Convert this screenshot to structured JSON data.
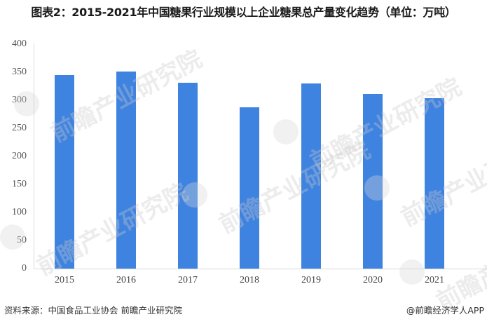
{
  "title": "图表2：2015-2021年中国糖果行业规模以上企业糖果总产量变化趋势（单位：万吨）",
  "footer": {
    "source": "资料来源：中国食品工业协会 前瞻产业研究院",
    "credit": "@前瞻经济学人APP"
  },
  "watermark": "前瞻产业研究院",
  "colors": {
    "bar": "#3f83e0",
    "axis": "#d9d9d9"
  },
  "y_ticks": [
    "400",
    "350",
    "300",
    "250",
    "200",
    "150",
    "100",
    "50",
    "0"
  ],
  "chart_data": {
    "type": "bar",
    "title": "图表2：2015-2021年中国糖果行业规模以上企业糖果总产量变化趋势（单位：万吨）",
    "xlabel": "",
    "ylabel": "万吨",
    "categories": [
      "2015",
      "2016",
      "2017",
      "2018",
      "2019",
      "2020",
      "2021"
    ],
    "values": [
      345,
      351,
      331,
      288,
      330,
      311,
      304
    ],
    "ylim": [
      0,
      400
    ],
    "yticks": [
      0,
      50,
      100,
      150,
      200,
      250,
      300,
      350,
      400
    ],
    "grid": false,
    "legend": null,
    "source": "资料来源：中国食品工业协会 前瞻产业研究院"
  }
}
